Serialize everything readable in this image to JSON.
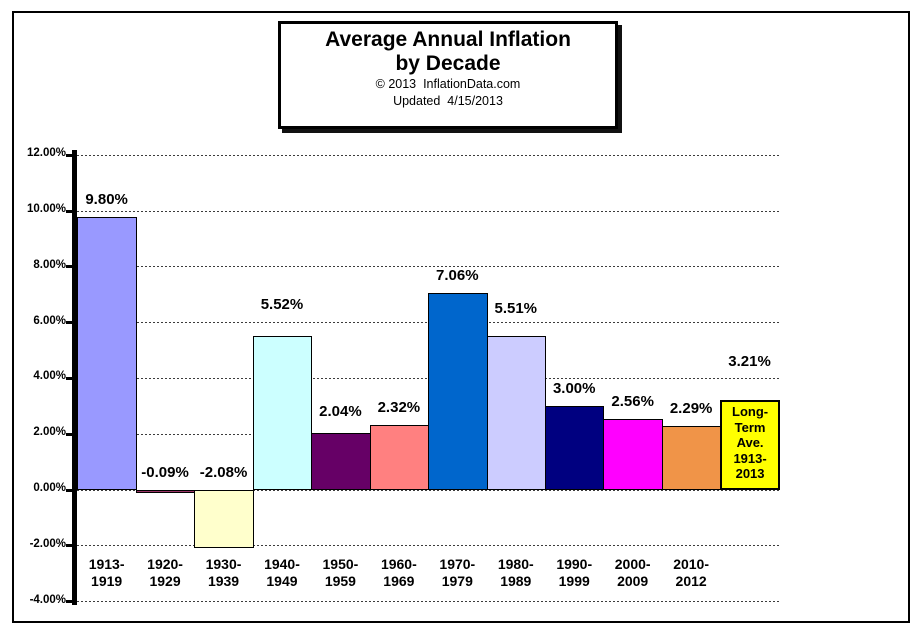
{
  "title_box": {
    "title_line1": "Average Annual Inflation",
    "title_line2": "by Decade",
    "copyright": "© 2013  InflationData.com",
    "updated": "Updated  4/15/2013"
  },
  "chart_data": {
    "type": "bar",
    "title": "Average Annual Inflation by Decade",
    "source": "© 2013 InflationData.com",
    "updated": "4/15/2013",
    "xlabel": "",
    "ylabel": "",
    "ylim": [
      -4,
      12
    ],
    "ytick_step": 2,
    "grid": "dashed horizontal every 2%",
    "legend": "none",
    "categories": [
      "1913-1919",
      "1920-1929",
      "1930-1939",
      "1940-1949",
      "1950-1959",
      "1960-1969",
      "1970-1979",
      "1980-1989",
      "1990-1999",
      "2000-2009",
      "2010-2012",
      "Long-Term Ave. 1913-2013"
    ],
    "values": [
      9.8,
      -0.09,
      -2.08,
      5.52,
      2.04,
      2.32,
      7.06,
      5.51,
      3.0,
      2.56,
      2.29,
      3.21
    ],
    "yticks": [
      {
        "value": 12,
        "label": "12.00%"
      },
      {
        "value": 10,
        "label": "10.00%"
      },
      {
        "value": 8,
        "label": "8.00%"
      },
      {
        "value": 6,
        "label": "6.00%"
      },
      {
        "value": 4,
        "label": "4.00%"
      },
      {
        "value": 2,
        "label": "2.00%"
      },
      {
        "value": 0,
        "label": "0.00%"
      },
      {
        "value": -2,
        "label": "-2.00%"
      },
      {
        "value": -4,
        "label": "-4.00%"
      }
    ],
    "points": [
      {
        "display": "9.80%",
        "color": "#9999FF",
        "axis_label_lines": [
          "1913-",
          "1919"
        ]
      },
      {
        "display": "-0.09%",
        "color": "#993366",
        "axis_label_lines": [
          "1920-",
          "1929"
        ]
      },
      {
        "display": "-2.08%",
        "color": "#FFFFCC",
        "axis_label_lines": [
          "1930-",
          "1939"
        ]
      },
      {
        "display": "5.52%",
        "color": "#CCFFFF",
        "axis_label_lines": [
          "1940-",
          "1949"
        ],
        "label_gap": 23
      },
      {
        "display": "2.04%",
        "color": "#660066",
        "axis_label_lines": [
          "1950-",
          "1959"
        ],
        "label_gap": 13
      },
      {
        "display": "2.32%",
        "color": "#FF8080",
        "axis_label_lines": [
          "1960-",
          "1969"
        ]
      },
      {
        "display": "7.06%",
        "color": "#0066CC",
        "axis_label_lines": [
          "1970-",
          "1979"
        ]
      },
      {
        "display": "5.51%",
        "color": "#CCCCFF",
        "axis_label_lines": [
          "1980-",
          "1989"
        ],
        "label_gap": 19
      },
      {
        "display": "3.00%",
        "color": "#000080",
        "axis_label_lines": [
          "1990-",
          "1999"
        ]
      },
      {
        "display": "2.56%",
        "color": "#FF00FF",
        "axis_label_lines": [
          "2000-",
          "2009"
        ]
      },
      {
        "display": "2.29%",
        "color": "#F09448",
        "axis_label_lines": [
          "2010-",
          "2012"
        ]
      },
      {
        "display": "3.21%",
        "color": "#FFFF00",
        "axis_label_lines": [],
        "label_gap": 30,
        "bar_text_lines": [
          "Long-",
          "Term",
          "Ave.",
          "1913-",
          "2013"
        ],
        "border_width": 2
      }
    ],
    "colors": {
      "axis": "#000000",
      "grid": "#3c3c3c",
      "bar_border": "#000000",
      "text": "#000000",
      "background": "#FFFFFF"
    }
  }
}
